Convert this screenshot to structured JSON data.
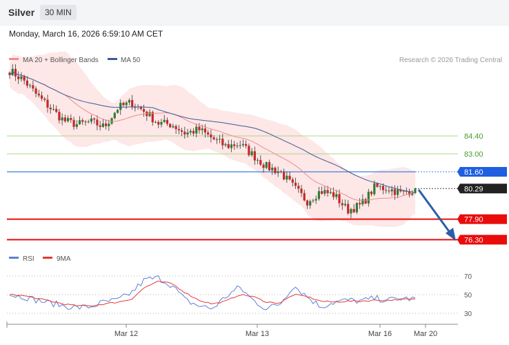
{
  "header": {
    "title": "Silver",
    "timeframe": "30 MIN",
    "datetime": "Monday, March 16, 2026 6:59:10 AM CET"
  },
  "legend": {
    "ma20_label": "MA 20 + Bollinger Bands",
    "ma50_label": "MA 50",
    "credit": "Research © 2026 Trading Central"
  },
  "rsi_legend": {
    "rsi_label": "RSI",
    "ma_label": "9MA"
  },
  "colors": {
    "bull": "#2e7d32",
    "bear": "#c62828",
    "ma20": "#f08a8a",
    "ma50": "#3a5a94",
    "band_fill": "#fde3e3",
    "pivot": "#3f7fe0",
    "support": "#ea0b0b",
    "resistance": "#a6d98a",
    "rsi": "#5c7fd6",
    "rsi_ma": "#e53935",
    "arrow": "#2c5ea8"
  },
  "chart_data": {
    "type": "candlestick",
    "x_labels": [
      "Mar 12",
      "Mar 13",
      "Mar 16",
      "Mar 20"
    ],
    "levels": [
      {
        "label": "84.40",
        "value": 84.4,
        "kind": "resistance"
      },
      {
        "label": "83.00",
        "value": 83.0,
        "kind": "resistance"
      },
      {
        "label": "81.60",
        "value": 81.6,
        "kind": "pivot"
      },
      {
        "label": "80.29",
        "value": 80.29,
        "kind": "last"
      },
      {
        "label": "77.90",
        "value": 77.9,
        "kind": "support"
      },
      {
        "label": "76.30",
        "value": 76.3,
        "kind": "support"
      }
    ],
    "close_path": [
      89.5,
      88.8,
      87.6,
      86.6,
      85.6,
      85.3,
      85.5,
      85.1,
      86.6,
      87.0,
      86.3,
      85.4,
      85.3,
      84.6,
      84.9,
      84.2,
      83.6,
      83.8,
      82.9,
      82.0,
      81.6,
      80.4,
      79.3,
      80.1,
      79.8,
      78.6,
      79.0,
      80.4,
      80.3,
      79.9,
      80.3
    ],
    "rsi": {
      "ticks": [
        70,
        50,
        30
      ],
      "rsi_path": [
        50,
        48,
        44,
        41,
        38,
        36,
        37,
        42,
        44,
        52,
        66,
        68,
        60,
        44,
        38,
        35,
        48,
        58,
        44,
        35,
        40,
        60,
        48,
        37,
        42,
        44,
        43,
        46,
        44,
        46,
        45
      ],
      "ma_path": [
        50,
        49,
        46,
        43,
        40,
        38,
        38,
        40,
        42,
        45,
        58,
        64,
        62,
        52,
        44,
        40,
        43,
        50,
        48,
        42,
        41,
        50,
        48,
        43,
        42,
        43,
        43,
        44,
        44,
        45,
        45
      ]
    }
  }
}
